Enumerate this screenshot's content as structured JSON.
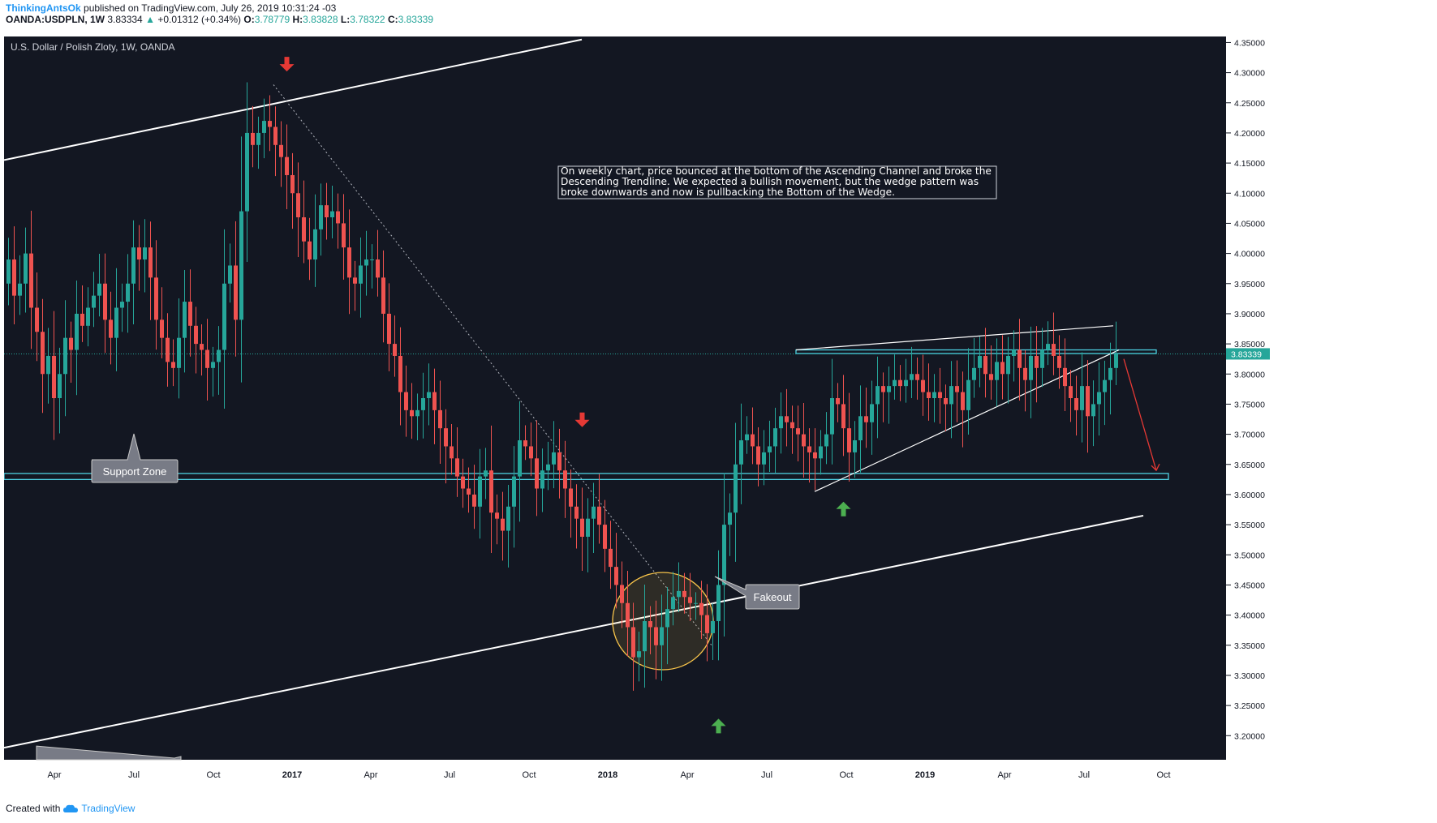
{
  "header": {
    "author": "ThinkingAntsOk",
    "published": "published on TradingView.com, July 26, 2019 10:31:24 -03",
    "symbol": "OANDA:USDPLN, 1W",
    "last": "3.83334",
    "change_arrow": "▲",
    "change": "+0.01312 (+0.34%)",
    "o_label": "O:",
    "o": "3.78779",
    "h_label": "H:",
    "h": "3.83828",
    "l_label": "L:",
    "l": "3.78322",
    "c_label": "C:",
    "c": "3.83339"
  },
  "footer": {
    "created_with": "Created with",
    "brand": "TradingView",
    "logo_icon": "tradingview-cloud-icon"
  },
  "colors": {
    "background": "#131722",
    "bull": "#26a69a",
    "bear": "#ef5350",
    "channel": "#ffffff",
    "zone": "#4dd0e1",
    "arrow_down": "#e53935",
    "arrow_up": "#4caf50",
    "fakeout_circle": "#f9c54a"
  },
  "chart_data": {
    "type": "candlestick",
    "title": "U.S. Dollar / Polish Zloty, 1W, OANDA",
    "last_price_label": "3.83339",
    "ylim": [
      3.16,
      4.36
    ],
    "y_ticks": [
      "4.35000",
      "4.30000",
      "4.25000",
      "4.20000",
      "4.15000",
      "4.10000",
      "4.05000",
      "4.00000",
      "3.95000",
      "3.90000",
      "3.85000",
      "3.80000",
      "3.75000",
      "3.70000",
      "3.65000",
      "3.60000",
      "3.55000",
      "3.50000",
      "3.45000",
      "3.40000",
      "3.35000",
      "3.30000",
      "3.25000",
      "3.20000"
    ],
    "x_ticks": [
      "Apr",
      "Jul",
      "Oct",
      "2017",
      "Apr",
      "Jul",
      "Oct",
      "2018",
      "Apr",
      "Jul",
      "Oct",
      "2019",
      "Apr",
      "Jul",
      "Oct"
    ],
    "candles_close": [
      3.99,
      3.93,
      3.95,
      4.0,
      3.91,
      3.87,
      3.8,
      3.83,
      3.76,
      3.8,
      3.86,
      3.84,
      3.9,
      3.88,
      3.91,
      3.93,
      3.95,
      3.89,
      3.86,
      3.91,
      3.92,
      3.95,
      4.01,
      3.99,
      4.01,
      3.96,
      3.89,
      3.86,
      3.82,
      3.81,
      3.86,
      3.92,
      3.88,
      3.85,
      3.84,
      3.81,
      3.82,
      3.84,
      3.95,
      3.98,
      3.89,
      4.07,
      4.2,
      4.18,
      4.2,
      4.22,
      4.21,
      4.18,
      4.16,
      4.13,
      4.1,
      4.06,
      4.02,
      3.99,
      4.04,
      4.08,
      4.06,
      4.07,
      4.05,
      4.01,
      3.96,
      3.95,
      3.98,
      3.99,
      3.99,
      3.96,
      3.9,
      3.85,
      3.83,
      3.77,
      3.74,
      3.73,
      3.74,
      3.76,
      3.77,
      3.74,
      3.71,
      3.68,
      3.66,
      3.63,
      3.61,
      3.6,
      3.58,
      3.63,
      3.64,
      3.57,
      3.56,
      3.54,
      3.58,
      3.63,
      3.69,
      3.68,
      3.66,
      3.61,
      3.64,
      3.65,
      3.67,
      3.64,
      3.61,
      3.58,
      3.56,
      3.53,
      3.56,
      3.58,
      3.55,
      3.51,
      3.48,
      3.45,
      3.42,
      3.38,
      3.33,
      3.34,
      3.39,
      3.38,
      3.35,
      3.38,
      3.41,
      3.43,
      3.44,
      3.43,
      3.42,
      3.42,
      3.4,
      3.37,
      3.39,
      3.45,
      3.55,
      3.57,
      3.65,
      3.69,
      3.7,
      3.68,
      3.65,
      3.67,
      3.68,
      3.71,
      3.73,
      3.72,
      3.71,
      3.7,
      3.68,
      3.67,
      3.66,
      3.68,
      3.7,
      3.76,
      3.75,
      3.71,
      3.67,
      3.69,
      3.73,
      3.72,
      3.75,
      3.78,
      3.77,
      3.78,
      3.79,
      3.78,
      3.79,
      3.8,
      3.79,
      3.77,
      3.76,
      3.77,
      3.76,
      3.75,
      3.78,
      3.77,
      3.74,
      3.79,
      3.81,
      3.83,
      3.8,
      3.79,
      3.82,
      3.8,
      3.83,
      3.84,
      3.81,
      3.79,
      3.83,
      3.81,
      3.84,
      3.85,
      3.83,
      3.81,
      3.78,
      3.76,
      3.74,
      3.78,
      3.73,
      3.75,
      3.77,
      3.79,
      3.81,
      3.83339
    ],
    "candles_open_first": 3.95,
    "events": [
      {
        "type": "arrow-down",
        "price": 4.31,
        "week": 49
      },
      {
        "type": "arrow-down",
        "price": 3.72,
        "week": 101
      },
      {
        "type": "arrow-up",
        "price": 3.22,
        "week": 125
      },
      {
        "type": "arrow-up",
        "price": 3.58,
        "week": 147
      }
    ],
    "support_zone": [
      3.625,
      3.635
    ],
    "resistance_zone": [
      3.834,
      3.84
    ],
    "annotation": "On weekly chart, price bounced at the bottom of the Ascending Channel and broke the Descending Trendline. We expected a bullish movement, but the wedge pattern was broke downwards and now is pullbacking the Bottom of the Wedge.",
    "callouts": [
      {
        "label": "Support Zone"
      },
      {
        "label": "Fakeout"
      }
    ]
  }
}
